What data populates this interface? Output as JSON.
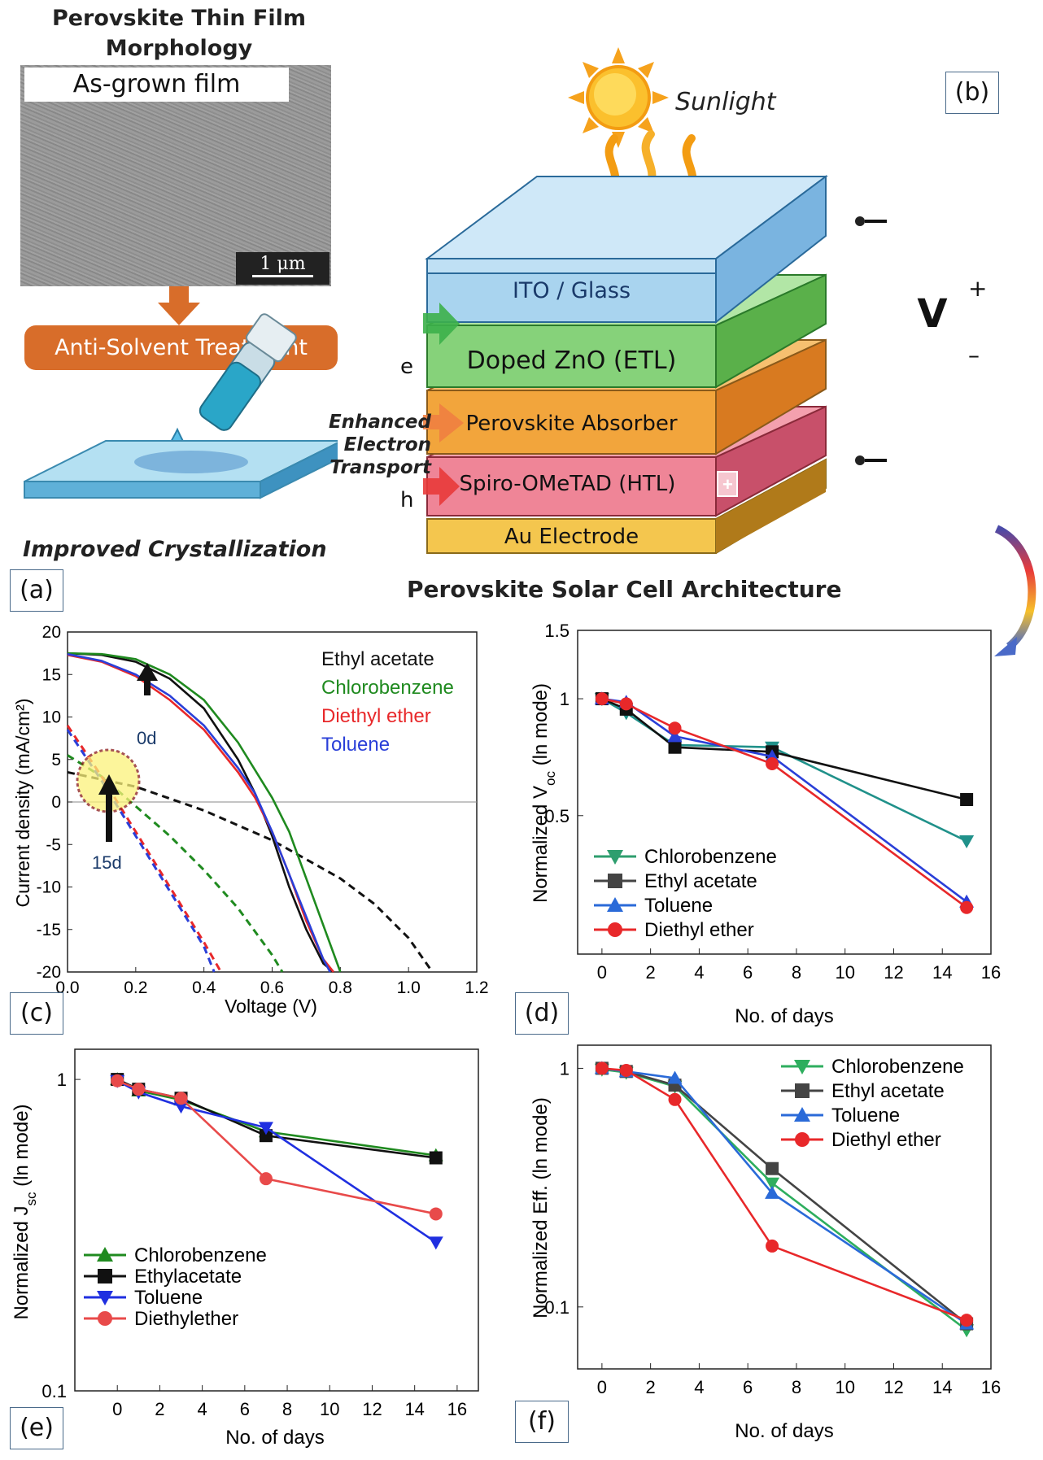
{
  "panel_a": {
    "title_line1": "Perovskite Thin Film",
    "title_line2": "Morphology",
    "sem_label": "As-grown film",
    "scale_bar": "1 μm",
    "treatment": "Anti-Solvent Treatment",
    "caption": "Improved Crystallization",
    "label": "(a)"
  },
  "panel_b": {
    "label": "(b)",
    "sunlight": "Sunlight",
    "layers": [
      "ITO / Glass",
      "Doped ZnO (ETL)",
      "Perovskite Absorber",
      "Spiro-OMeTAD (HTL)",
      "Au Electrode"
    ],
    "voltmeter": "V",
    "plus": "+",
    "minus": "–",
    "electron": "e",
    "hole": "h",
    "enhanced_line1": "Enhanced",
    "enhanced_line2": "Electron",
    "enhanced_line3": "Transport",
    "caption": "Perovskite Solar Cell Architecture",
    "colors": {
      "ito": "#a9d4ef",
      "etl": "#86d27a",
      "absorber": "#f2a53c",
      "htl": "#ef7d92",
      "au": "#f2c04a"
    }
  },
  "chart_data": [
    {
      "id": "c",
      "label": "(c)",
      "type": "line",
      "xlabel": "Voltage (V)",
      "ylabel": "Current density (mA/cm²)",
      "xlim": [
        0.0,
        1.2
      ],
      "ylim": [
        -20,
        20
      ],
      "xticks": [
        "0.0",
        "0.2",
        "0.4",
        "0.6",
        "0.8",
        "1.0",
        "1.2"
      ],
      "yticks": [
        "20",
        "15",
        "10",
        "5",
        "0",
        "-5",
        "-10",
        "-15",
        "-20"
      ],
      "annotations": {
        "day0": "0d",
        "day15": "15d"
      },
      "series": [
        {
          "name": "Ethyl acetate",
          "color": "#111111",
          "x0d": [
            0,
            0.1,
            0.2,
            0.3,
            0.4,
            0.5,
            0.55,
            0.6,
            0.65,
            0.7,
            0.75,
            0.78
          ],
          "y0d": [
            17.5,
            17.3,
            16.5,
            14.5,
            11.0,
            5.0,
            1.0,
            -4.0,
            -10.0,
            -15.0,
            -19.0,
            -20.0
          ],
          "x15d": [
            0,
            0.2,
            0.4,
            0.6,
            0.8,
            0.9,
            1.0,
            1.07
          ],
          "y15d": [
            3.5,
            1.8,
            -1.0,
            -4.5,
            -9.0,
            -12.0,
            -16.0,
            -20.0
          ]
        },
        {
          "name": "Chlorobenzene",
          "color": "#1f8a1f",
          "x0d": [
            0,
            0.1,
            0.2,
            0.3,
            0.4,
            0.5,
            0.6,
            0.65,
            0.7,
            0.75,
            0.8
          ],
          "y0d": [
            17.5,
            17.4,
            16.8,
            15.0,
            12.0,
            7.0,
            0.5,
            -3.5,
            -9.0,
            -14.5,
            -20.0
          ],
          "x15d": [
            0,
            0.1,
            0.2,
            0.3,
            0.4,
            0.5,
            0.6,
            0.63
          ],
          "y15d": [
            5.5,
            3.0,
            -0.5,
            -4.0,
            -8.0,
            -12.5,
            -18.0,
            -20.0
          ]
        },
        {
          "name": "Diethyl ether",
          "color": "#e8282a",
          "x0d": [
            0,
            0.1,
            0.2,
            0.3,
            0.4,
            0.5,
            0.55,
            0.6,
            0.65,
            0.7,
            0.75,
            0.78
          ],
          "y0d": [
            17.3,
            16.5,
            14.8,
            12.0,
            8.5,
            3.5,
            0.5,
            -3.5,
            -8.5,
            -14.0,
            -18.5,
            -20.0
          ],
          "x15d": [
            0,
            0.1,
            0.2,
            0.3,
            0.4,
            0.45
          ],
          "y15d": [
            9.0,
            3.0,
            -3.5,
            -10.0,
            -16.5,
            -20.0
          ]
        },
        {
          "name": "Toluene",
          "color": "#2a3fd8",
          "x0d": [
            0,
            0.1,
            0.2,
            0.3,
            0.4,
            0.5,
            0.55,
            0.6,
            0.65,
            0.7,
            0.75,
            0.77
          ],
          "y0d": [
            17.4,
            16.6,
            15.0,
            12.5,
            9.0,
            4.0,
            1.0,
            -3.5,
            -8.5,
            -13.5,
            -18.5,
            -20.0
          ],
          "x15d": [
            0,
            0.1,
            0.2,
            0.3,
            0.4,
            0.43
          ],
          "y15d": [
            8.5,
            2.5,
            -4.0,
            -10.5,
            -17.0,
            -20.0
          ]
        }
      ]
    },
    {
      "id": "d",
      "label": "(d)",
      "type": "line",
      "scale": "log",
      "xlabel": "No. of days",
      "ylabel": "Normalized V_oc (ln mode)",
      "xlim": [
        -1,
        16
      ],
      "ylim": [
        0.22,
        1.5
      ],
      "xticks": [
        "0",
        "2",
        "4",
        "6",
        "8",
        "10",
        "12",
        "14",
        "16"
      ],
      "ytick_values": [
        0.5,
        1,
        1.5
      ],
      "yticks": [
        "0.5",
        "1",
        "1.5"
      ],
      "x": [
        0,
        1,
        3,
        7,
        15
      ],
      "series": [
        {
          "name": "Chlorobenzene",
          "color": "#20918a",
          "marker": "triangle-down",
          "values": [
            1.0,
            0.92,
            0.76,
            0.75,
            0.43
          ]
        },
        {
          "name": "Ethyl acetate",
          "color": "#111111",
          "marker": "square",
          "values": [
            1.0,
            0.94,
            0.75,
            0.73,
            0.55
          ]
        },
        {
          "name": "Toluene",
          "color": "#2a3fd8",
          "marker": "triangle-up",
          "values": [
            1.0,
            0.98,
            0.8,
            0.71,
            0.3
          ]
        },
        {
          "name": "Diethyl ether",
          "color": "#e8282a",
          "marker": "circle",
          "values": [
            1.0,
            0.97,
            0.84,
            0.68,
            0.29
          ]
        }
      ],
      "legend_markers": [
        "triangle-down",
        "square",
        "triangle-up",
        "circle"
      ],
      "legend_colors": [
        "#2e9e6e",
        "#444444",
        "#2a6ad8",
        "#e8282a"
      ]
    },
    {
      "id": "e",
      "label": "(e)",
      "type": "line",
      "scale": "log",
      "xlabel": "No. of days",
      "ylabel": "Normalized J_sc (ln mode)",
      "xlim": [
        -2,
        17
      ],
      "ylim": [
        0.1,
        1.25
      ],
      "xticks": [
        "0",
        "2",
        "4",
        "6",
        "8",
        "10",
        "12",
        "14",
        "16"
      ],
      "ytick_values": [
        0.1,
        1
      ],
      "yticks": [
        "0.1",
        "1"
      ],
      "x": [
        0,
        1,
        3,
        7,
        15
      ],
      "series": [
        {
          "name": "Chlorobenzene",
          "color": "#1f8a1f",
          "marker": "triangle-up",
          "values": [
            1.0,
            0.92,
            0.86,
            0.68,
            0.57
          ]
        },
        {
          "name": "Ethylacetate",
          "color": "#111111",
          "marker": "square",
          "values": [
            1.0,
            0.93,
            0.87,
            0.66,
            0.56
          ]
        },
        {
          "name": "Toluene",
          "color": "#1f2fe0",
          "marker": "triangle-down",
          "values": [
            0.99,
            0.91,
            0.82,
            0.7,
            0.3
          ]
        },
        {
          "name": "Diethylether",
          "color": "#e84a4a",
          "marker": "circle",
          "values": [
            0.99,
            0.93,
            0.87,
            0.48,
            0.37
          ]
        }
      ]
    },
    {
      "id": "f",
      "label": "(f)",
      "type": "line",
      "scale": "log",
      "xlabel": "No. of days",
      "ylabel": "Normalized Eff. (ln mode)",
      "xlim": [
        -1,
        16
      ],
      "ylim": [
        0.055,
        1.25
      ],
      "xticks": [
        "0",
        "2",
        "4",
        "6",
        "8",
        "10",
        "12",
        "14",
        "16"
      ],
      "ytick_values": [
        0.1,
        1
      ],
      "yticks": [
        "0.1",
        "1"
      ],
      "x": [
        0,
        1,
        3,
        7,
        15
      ],
      "series": [
        {
          "name": "Chlorobenzene",
          "color": "#2eae5e",
          "marker": "triangle-down",
          "values": [
            0.99,
            0.96,
            0.84,
            0.33,
            0.08
          ]
        },
        {
          "name": "Ethyl acetate",
          "color": "#444444",
          "marker": "square",
          "values": [
            1.0,
            0.97,
            0.85,
            0.38,
            0.085
          ]
        },
        {
          "name": "Toluene",
          "color": "#2a6ad8",
          "marker": "triangle-up",
          "values": [
            1.0,
            0.97,
            0.91,
            0.3,
            0.085
          ]
        },
        {
          "name": "Diethyl ether",
          "color": "#e8282a",
          "marker": "circle",
          "values": [
            1.0,
            0.98,
            0.74,
            0.18,
            0.088
          ]
        }
      ]
    }
  ]
}
